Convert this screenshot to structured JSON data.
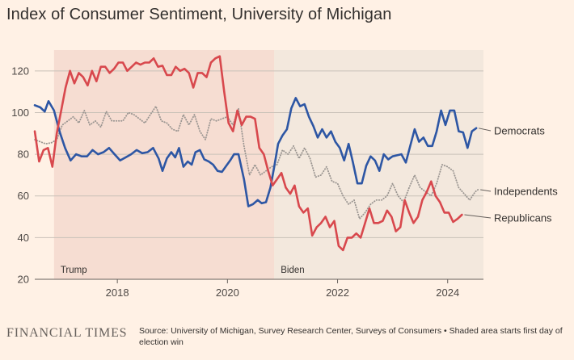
{
  "title": "Index of Consumer Sentiment, University of Michigan",
  "source_text": "Source: University of Michigan, Survey Research Center, Surveys of Consumers • Shaded area starts first day of election win",
  "logo_text": "FINANCIAL TIMES",
  "colors": {
    "background": "#fff1e5",
    "trump_shade": "#f6ddd2",
    "biden_shade": "#f3e8dd",
    "democrats": "#2d56a4",
    "republicans": "#d8484d",
    "independents": "#9a9591",
    "grid": "#c9c1b8"
  },
  "chart_data": {
    "type": "line",
    "title": "Index of Consumer Sentiment, University of Michigan",
    "x_domain": [
      2016.5,
      2024.65
    ],
    "ylim": [
      20,
      130
    ],
    "yticks": [
      20,
      40,
      60,
      80,
      100,
      120
    ],
    "xticks": [
      2018,
      2020,
      2022,
      2024
    ],
    "grid": "horizontal",
    "shaded_periods": [
      {
        "label": "Trump",
        "start": 2016.85,
        "end": 2020.85
      },
      {
        "label": "Biden",
        "start": 2020.85,
        "end": 2024.65
      }
    ],
    "series": [
      {
        "name": "Democrats",
        "style": "solid",
        "points": [
          [
            2016.5,
            103.5
          ],
          [
            2016.6,
            102.5
          ],
          [
            2016.68,
            100.5
          ],
          [
            2016.75,
            105.5
          ],
          [
            2016.85,
            101
          ],
          [
            2016.95,
            91
          ],
          [
            2017.05,
            83
          ],
          [
            2017.15,
            77
          ],
          [
            2017.25,
            80
          ],
          [
            2017.35,
            79
          ],
          [
            2017.45,
            79
          ],
          [
            2017.55,
            82
          ],
          [
            2017.65,
            80
          ],
          [
            2017.75,
            81
          ],
          [
            2017.85,
            83
          ],
          [
            2017.95,
            80
          ],
          [
            2018.05,
            77
          ],
          [
            2018.15,
            78.5
          ],
          [
            2018.25,
            80
          ],
          [
            2018.35,
            82
          ],
          [
            2018.45,
            80.5
          ],
          [
            2018.55,
            81
          ],
          [
            2018.65,
            83
          ],
          [
            2018.75,
            78
          ],
          [
            2018.82,
            72
          ],
          [
            2018.9,
            78
          ],
          [
            2018.98,
            81
          ],
          [
            2019.05,
            78.5
          ],
          [
            2019.12,
            83
          ],
          [
            2019.2,
            74
          ],
          [
            2019.28,
            76.5
          ],
          [
            2019.35,
            75
          ],
          [
            2019.42,
            81
          ],
          [
            2019.5,
            82
          ],
          [
            2019.58,
            77.5
          ],
          [
            2019.66,
            76.5
          ],
          [
            2019.74,
            75
          ],
          [
            2019.82,
            72
          ],
          [
            2019.9,
            71.5
          ],
          [
            2019.98,
            74.5
          ],
          [
            2020.05,
            77
          ],
          [
            2020.12,
            80
          ],
          [
            2020.2,
            80
          ],
          [
            2020.3,
            68
          ],
          [
            2020.38,
            55
          ],
          [
            2020.46,
            56
          ],
          [
            2020.55,
            58
          ],
          [
            2020.62,
            56.5
          ],
          [
            2020.7,
            57
          ],
          [
            2020.78,
            64
          ],
          [
            2020.85,
            74
          ],
          [
            2020.92,
            85
          ],
          [
            2021.0,
            89
          ],
          [
            2021.08,
            92
          ],
          [
            2021.16,
            102
          ],
          [
            2021.24,
            107
          ],
          [
            2021.32,
            103
          ],
          [
            2021.4,
            104
          ],
          [
            2021.48,
            98
          ],
          [
            2021.56,
            93.5
          ],
          [
            2021.64,
            88
          ],
          [
            2021.72,
            92
          ],
          [
            2021.8,
            88
          ],
          [
            2021.88,
            91
          ],
          [
            2021.96,
            86
          ],
          [
            2022.04,
            83
          ],
          [
            2022.12,
            77
          ],
          [
            2022.2,
            85
          ],
          [
            2022.28,
            76
          ],
          [
            2022.36,
            66
          ],
          [
            2022.44,
            66
          ],
          [
            2022.52,
            74.5
          ],
          [
            2022.6,
            79
          ],
          [
            2022.68,
            77
          ],
          [
            2022.76,
            72
          ],
          [
            2022.84,
            80
          ],
          [
            2022.92,
            77.5
          ],
          [
            2023.0,
            79
          ],
          [
            2023.08,
            79.5
          ],
          [
            2023.16,
            80
          ],
          [
            2023.24,
            76
          ],
          [
            2023.32,
            84
          ],
          [
            2023.4,
            92
          ],
          [
            2023.48,
            86
          ],
          [
            2023.56,
            88
          ],
          [
            2023.64,
            84
          ],
          [
            2023.72,
            84
          ],
          [
            2023.8,
            91
          ],
          [
            2023.88,
            101
          ],
          [
            2023.96,
            94
          ],
          [
            2024.04,
            101
          ],
          [
            2024.12,
            101
          ],
          [
            2024.2,
            91
          ],
          [
            2024.28,
            90.5
          ],
          [
            2024.36,
            83
          ],
          [
            2024.44,
            91
          ],
          [
            2024.52,
            92.5
          ]
        ]
      },
      {
        "name": "Independents",
        "style": "dotted",
        "points": [
          [
            2016.5,
            87
          ],
          [
            2016.6,
            86
          ],
          [
            2016.7,
            85
          ],
          [
            2016.8,
            85.5
          ],
          [
            2016.9,
            87
          ],
          [
            2017.0,
            94
          ],
          [
            2017.1,
            96
          ],
          [
            2017.2,
            98
          ],
          [
            2017.3,
            95
          ],
          [
            2017.4,
            101
          ],
          [
            2017.5,
            94
          ],
          [
            2017.6,
            96
          ],
          [
            2017.7,
            93
          ],
          [
            2017.8,
            100.5
          ],
          [
            2017.9,
            96
          ],
          [
            2018.0,
            96
          ],
          [
            2018.1,
            96
          ],
          [
            2018.2,
            100
          ],
          [
            2018.3,
            99
          ],
          [
            2018.4,
            97
          ],
          [
            2018.5,
            95
          ],
          [
            2018.6,
            99
          ],
          [
            2018.7,
            103
          ],
          [
            2018.8,
            96
          ],
          [
            2018.9,
            95
          ],
          [
            2019.0,
            92
          ],
          [
            2019.1,
            91
          ],
          [
            2019.2,
            99
          ],
          [
            2019.3,
            94
          ],
          [
            2019.4,
            99
          ],
          [
            2019.5,
            91
          ],
          [
            2019.6,
            87
          ],
          [
            2019.7,
            97
          ],
          [
            2019.8,
            96
          ],
          [
            2019.9,
            97
          ],
          [
            2020.0,
            98
          ],
          [
            2020.1,
            94
          ],
          [
            2020.2,
            102
          ],
          [
            2020.3,
            84
          ],
          [
            2020.4,
            70
          ],
          [
            2020.5,
            75
          ],
          [
            2020.6,
            70
          ],
          [
            2020.7,
            72
          ],
          [
            2020.8,
            74
          ],
          [
            2020.9,
            75
          ],
          [
            2021.0,
            82
          ],
          [
            2021.1,
            80
          ],
          [
            2021.2,
            84
          ],
          [
            2021.3,
            78
          ],
          [
            2021.4,
            83
          ],
          [
            2021.5,
            78
          ],
          [
            2021.6,
            69
          ],
          [
            2021.7,
            70
          ],
          [
            2021.8,
            74
          ],
          [
            2021.9,
            67
          ],
          [
            2022.0,
            66
          ],
          [
            2022.1,
            60
          ],
          [
            2022.2,
            56
          ],
          [
            2022.3,
            58
          ],
          [
            2022.4,
            49
          ],
          [
            2022.5,
            52
          ],
          [
            2022.6,
            56
          ],
          [
            2022.7,
            58
          ],
          [
            2022.8,
            58
          ],
          [
            2022.9,
            60
          ],
          [
            2023.0,
            66
          ],
          [
            2023.1,
            60
          ],
          [
            2023.2,
            57
          ],
          [
            2023.3,
            64
          ],
          [
            2023.4,
            70
          ],
          [
            2023.5,
            64
          ],
          [
            2023.6,
            62
          ],
          [
            2023.7,
            60
          ],
          [
            2023.8,
            66
          ],
          [
            2023.9,
            75
          ],
          [
            2024.0,
            74
          ],
          [
            2024.1,
            72
          ],
          [
            2024.2,
            64
          ],
          [
            2024.3,
            61
          ],
          [
            2024.4,
            58
          ],
          [
            2024.5,
            62
          ],
          [
            2024.55,
            63
          ]
        ]
      },
      {
        "name": "Republicans",
        "style": "solid",
        "points": [
          [
            2016.5,
            91
          ],
          [
            2016.58,
            76.5
          ],
          [
            2016.66,
            82
          ],
          [
            2016.74,
            83
          ],
          [
            2016.82,
            74
          ],
          [
            2016.9,
            90
          ],
          [
            2016.98,
            101
          ],
          [
            2017.06,
            112
          ],
          [
            2017.14,
            120
          ],
          [
            2017.22,
            114
          ],
          [
            2017.3,
            119
          ],
          [
            2017.38,
            117
          ],
          [
            2017.46,
            113
          ],
          [
            2017.54,
            120
          ],
          [
            2017.62,
            115
          ],
          [
            2017.7,
            122
          ],
          [
            2017.78,
            122
          ],
          [
            2017.86,
            119
          ],
          [
            2017.94,
            121
          ],
          [
            2018.02,
            124
          ],
          [
            2018.1,
            124
          ],
          [
            2018.18,
            120
          ],
          [
            2018.26,
            122
          ],
          [
            2018.34,
            124
          ],
          [
            2018.42,
            123
          ],
          [
            2018.5,
            124
          ],
          [
            2018.58,
            124
          ],
          [
            2018.66,
            126
          ],
          [
            2018.74,
            122
          ],
          [
            2018.82,
            122.5
          ],
          [
            2018.9,
            118
          ],
          [
            2018.98,
            118
          ],
          [
            2019.06,
            122
          ],
          [
            2019.14,
            120
          ],
          [
            2019.22,
            121
          ],
          [
            2019.3,
            119
          ],
          [
            2019.38,
            112
          ],
          [
            2019.46,
            119
          ],
          [
            2019.54,
            119
          ],
          [
            2019.62,
            117
          ],
          [
            2019.7,
            124
          ],
          [
            2019.78,
            126
          ],
          [
            2019.86,
            127
          ],
          [
            2019.94,
            110
          ],
          [
            2020.02,
            95
          ],
          [
            2020.1,
            91
          ],
          [
            2020.18,
            101
          ],
          [
            2020.26,
            94
          ],
          [
            2020.34,
            98
          ],
          [
            2020.42,
            98
          ],
          [
            2020.5,
            97
          ],
          [
            2020.58,
            83
          ],
          [
            2020.66,
            80
          ],
          [
            2020.74,
            72
          ],
          [
            2020.82,
            65
          ],
          [
            2020.9,
            68
          ],
          [
            2020.98,
            71
          ],
          [
            2021.06,
            64
          ],
          [
            2021.14,
            61
          ],
          [
            2021.22,
            65
          ],
          [
            2021.3,
            55
          ],
          [
            2021.38,
            52
          ],
          [
            2021.46,
            54
          ],
          [
            2021.54,
            41
          ],
          [
            2021.62,
            45
          ],
          [
            2021.7,
            47
          ],
          [
            2021.78,
            50
          ],
          [
            2021.86,
            45
          ],
          [
            2021.94,
            48
          ],
          [
            2022.02,
            36
          ],
          [
            2022.1,
            34
          ],
          [
            2022.18,
            40
          ],
          [
            2022.26,
            40
          ],
          [
            2022.34,
            42
          ],
          [
            2022.42,
            40
          ],
          [
            2022.5,
            47
          ],
          [
            2022.58,
            54
          ],
          [
            2022.66,
            47
          ],
          [
            2022.74,
            47
          ],
          [
            2022.82,
            48
          ],
          [
            2022.9,
            53
          ],
          [
            2022.98,
            50
          ],
          [
            2023.06,
            43
          ],
          [
            2023.14,
            45
          ],
          [
            2023.22,
            58
          ],
          [
            2023.3,
            52
          ],
          [
            2023.38,
            47
          ],
          [
            2023.46,
            50
          ],
          [
            2023.54,
            58
          ],
          [
            2023.62,
            62
          ],
          [
            2023.7,
            67
          ],
          [
            2023.78,
            60
          ],
          [
            2023.86,
            57
          ],
          [
            2023.94,
            52
          ],
          [
            2024.02,
            52
          ],
          [
            2024.1,
            47.5
          ],
          [
            2024.18,
            49
          ],
          [
            2024.26,
            51
          ]
        ]
      }
    ]
  }
}
